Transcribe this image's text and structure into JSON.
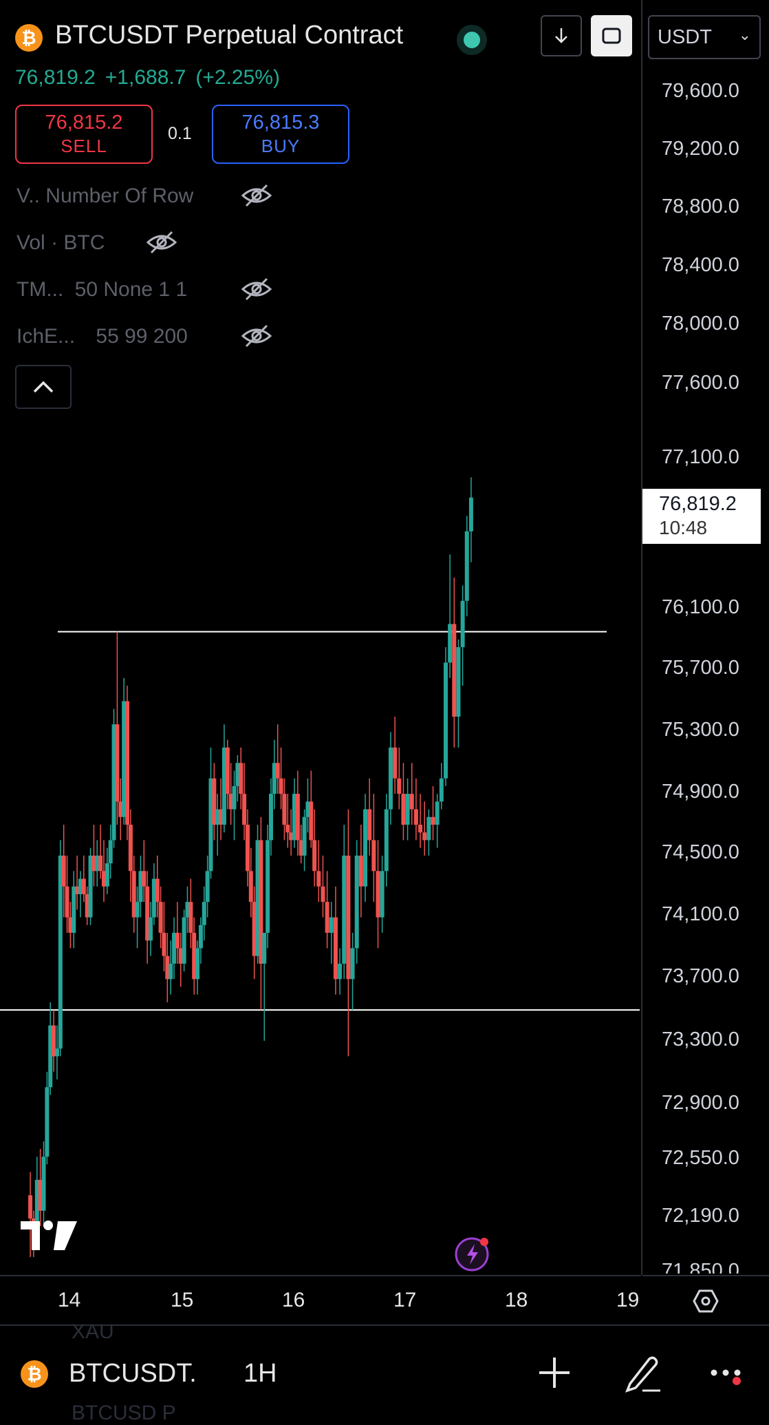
{
  "header": {
    "symbol_badge": "₿",
    "title": "BTCUSDT Perpetual Contract",
    "last_price": "76,819.2",
    "change": "+1,688.7",
    "change_pct": "(+2.25%)",
    "sell_price": "76,815.2",
    "sell_label": "SELL",
    "buy_price": "76,815.3",
    "buy_label": "BUY",
    "quantity": "0.1",
    "icons": {
      "download": "download-icon",
      "fullscreen": "fullscreen-icon"
    }
  },
  "indicators": [
    {
      "name": "V..",
      "params": "Number Of Row"
    },
    {
      "name": "Vol",
      "params": "· BTC"
    },
    {
      "name": "TM...",
      "params": "50 None 1 1"
    },
    {
      "name": "IchE...",
      "params": "55 99 200"
    }
  ],
  "price_axis": {
    "currency": "USDT",
    "ticks": [
      "79,600.0",
      "79,200.0",
      "78,800.0",
      "78,400.0",
      "78,000.0",
      "77,600.0",
      "77,100.0",
      "76,100.0",
      "75,700.0",
      "75,300.0",
      "74,900.0",
      "74,500.0",
      "74,100.0",
      "73,700.0",
      "73,300.0",
      "72,900.0",
      "72,550.0",
      "72,190.0",
      "71,850.0"
    ],
    "current_price": "76,819.2",
    "countdown": "10:48"
  },
  "time_axis": {
    "labels": [
      "14",
      "15",
      "16",
      "17",
      "18",
      "19"
    ]
  },
  "colors": {
    "up": "#26a69a",
    "down": "#ef5350",
    "background": "#000000",
    "sell": "#f23645",
    "buy": "#2962ff",
    "price_text": "#22ab94"
  },
  "chart_data": {
    "type": "candlestick",
    "timeframe": "1H",
    "x_unit": "day index (14 = day 14)",
    "ylim": [
      71850,
      79800
    ],
    "candles": [
      [
        13.63,
        72300,
        72450,
        71900,
        72150
      ],
      [
        13.66,
        72150,
        72200,
        71900,
        72000
      ],
      [
        13.69,
        72000,
        72550,
        71950,
        72400
      ],
      [
        13.72,
        72400,
        72600,
        72100,
        72200
      ],
      [
        13.75,
        72200,
        72650,
        72100,
        72550
      ],
      [
        13.78,
        72550,
        73100,
        72500,
        73000
      ],
      [
        13.81,
        73000,
        73550,
        72950,
        73400
      ],
      [
        13.84,
        73400,
        73500,
        73100,
        73200
      ],
      [
        13.87,
        73200,
        73400,
        73050,
        73250
      ],
      [
        13.9,
        73250,
        74600,
        73200,
        74500
      ],
      [
        13.93,
        74500,
        74700,
        74100,
        74300
      ],
      [
        13.96,
        74300,
        74500,
        74000,
        74100
      ],
      [
        13.99,
        74100,
        74200,
        73900,
        74000
      ],
      [
        14.02,
        74000,
        74400,
        73900,
        74300
      ],
      [
        14.05,
        74300,
        74500,
        74150,
        74250
      ],
      [
        14.08,
        74250,
        74400,
        74100,
        74350
      ],
      [
        14.11,
        74350,
        74500,
        74200,
        74250
      ],
      [
        14.14,
        74250,
        74300,
        74050,
        74100
      ],
      [
        14.17,
        74100,
        74550,
        74050,
        74500
      ],
      [
        14.2,
        74500,
        74700,
        74300,
        74400
      ],
      [
        14.23,
        74400,
        74600,
        74300,
        74500
      ],
      [
        14.26,
        74500,
        74700,
        74350,
        74400
      ],
      [
        14.29,
        74400,
        74600,
        74200,
        74300
      ],
      [
        14.32,
        74300,
        74550,
        74250,
        74450
      ],
      [
        14.35,
        74450,
        74700,
        74350,
        74600
      ],
      [
        14.38,
        74600,
        75450,
        74550,
        75350
      ],
      [
        14.41,
        75350,
        75950,
        74700,
        74850
      ],
      [
        14.44,
        74850,
        75000,
        74600,
        74750
      ],
      [
        14.47,
        74750,
        75650,
        74700,
        75500
      ],
      [
        14.5,
        75500,
        75600,
        74600,
        74700
      ],
      [
        14.53,
        74700,
        74800,
        74200,
        74400
      ],
      [
        14.56,
        74400,
        74500,
        74000,
        74100
      ],
      [
        14.59,
        74100,
        74300,
        73900,
        74200
      ],
      [
        14.62,
        74200,
        74500,
        74100,
        74400
      ],
      [
        14.65,
        74400,
        74600,
        74200,
        74300
      ],
      [
        14.68,
        74300,
        74400,
        73800,
        73950
      ],
      [
        14.71,
        73950,
        74200,
        73850,
        74100
      ],
      [
        14.74,
        74100,
        74450,
        74050,
        74350
      ],
      [
        14.77,
        74350,
        74500,
        74100,
        74200
      ],
      [
        14.8,
        74200,
        74300,
        73900,
        74000
      ],
      [
        14.83,
        74000,
        74200,
        73750,
        73850
      ],
      [
        14.86,
        73850,
        74000,
        73550,
        73700
      ],
      [
        14.89,
        73700,
        73950,
        73600,
        73800
      ],
      [
        14.92,
        73800,
        74100,
        73700,
        74000
      ],
      [
        14.95,
        74000,
        74200,
        73800,
        73900
      ],
      [
        14.98,
        73900,
        74000,
        73650,
        73800
      ],
      [
        15.01,
        73800,
        74150,
        73750,
        74100
      ],
      [
        15.04,
        74100,
        74300,
        74000,
        74200
      ],
      [
        15.07,
        74200,
        74350,
        73900,
        74000
      ],
      [
        15.1,
        74000,
        74100,
        73600,
        73700
      ],
      [
        15.13,
        73700,
        73950,
        73600,
        73900
      ],
      [
        15.16,
        73900,
        74100,
        73800,
        74050
      ],
      [
        15.19,
        74050,
        74300,
        73950,
        74200
      ],
      [
        15.22,
        74200,
        74500,
        74100,
        74400
      ],
      [
        15.25,
        74400,
        75200,
        74350,
        75000
      ],
      [
        15.28,
        75000,
        75100,
        74600,
        74700
      ],
      [
        15.31,
        74700,
        74900,
        74500,
        74800
      ],
      [
        15.34,
        74800,
        75000,
        74600,
        74700
      ],
      [
        15.37,
        74700,
        75350,
        74650,
        75200
      ],
      [
        15.4,
        75200,
        75250,
        74800,
        74900
      ],
      [
        15.43,
        74900,
        75100,
        74700,
        74800
      ],
      [
        15.46,
        74800,
        75050,
        74600,
        74950
      ],
      [
        15.49,
        74950,
        75150,
        74850,
        75100
      ],
      [
        15.52,
        75100,
        75200,
        74800,
        74900
      ],
      [
        15.55,
        74900,
        75100,
        74600,
        74700
      ],
      [
        15.58,
        74700,
        74800,
        74300,
        74400
      ],
      [
        15.61,
        74400,
        74550,
        74100,
        74200
      ],
      [
        15.64,
        74200,
        74300,
        73700,
        73850
      ],
      [
        15.67,
        73850,
        74700,
        73800,
        74600
      ],
      [
        15.7,
        74600,
        74750,
        73500,
        73800
      ],
      [
        15.73,
        73800,
        74000,
        73300,
        74000
      ],
      [
        15.76,
        74000,
        74700,
        73900,
        74600
      ],
      [
        15.79,
        74600,
        75000,
        74500,
        74900
      ],
      [
        15.82,
        74900,
        75250,
        74800,
        75100
      ],
      [
        15.85,
        75100,
        75350,
        74900,
        75000
      ],
      [
        15.88,
        75000,
        75200,
        74800,
        74900
      ],
      [
        15.91,
        74900,
        75000,
        74600,
        74700
      ],
      [
        15.94,
        74700,
        74900,
        74550,
        74650
      ],
      [
        15.97,
        74650,
        74800,
        74500,
        74600
      ],
      [
        16.0,
        74600,
        75000,
        74550,
        74900
      ],
      [
        16.03,
        74900,
        75050,
        74500,
        74600
      ],
      [
        16.06,
        74600,
        74700,
        74450,
        74500
      ],
      [
        16.09,
        74500,
        74800,
        74400,
        74750
      ],
      [
        16.12,
        74750,
        75000,
        74650,
        74850
      ],
      [
        16.15,
        74850,
        75050,
        74550,
        74600
      ]
    ],
    "horizontal_lines": [
      75950,
      73500
    ],
    "title": "",
    "xlabel": "",
    "ylabel": ""
  },
  "bottom_bar": {
    "ghost_top": "XAU",
    "symbol": "BTCUSDT.",
    "interval": "1H",
    "ghost_bottom": "BTCUSD P",
    "icons": {
      "add": "add-icon",
      "draw": "draw-icon",
      "more": "more-icon",
      "settings": "settings-icon",
      "lightning": "lightning-icon",
      "logo": "tradingview-logo"
    }
  }
}
